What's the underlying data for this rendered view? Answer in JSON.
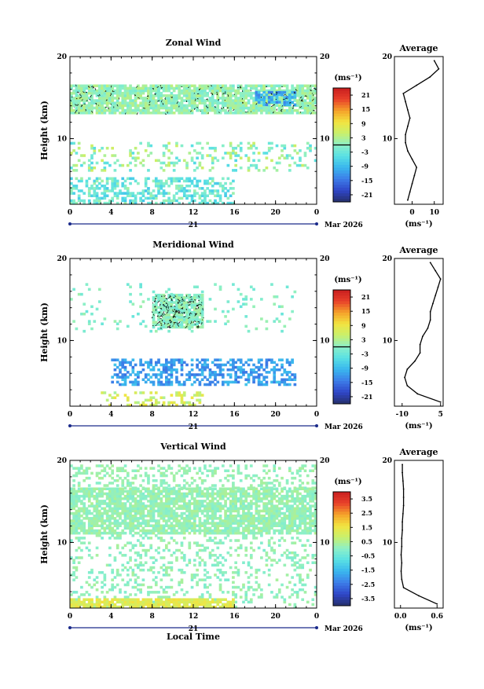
{
  "common": {
    "ylabel": "Height (km)",
    "unit_label": "(ms⁻¹)",
    "avg_title": "Average",
    "avg_xlabel": "(ms⁻¹)",
    "day_label": "21",
    "month_label": "Mar 2026",
    "xlabel": "Local Time"
  },
  "chart_data": [
    {
      "type": "heatmap",
      "title": "Zonal Wind",
      "ylabel": "Height (km)",
      "x_ticks": [
        "0",
        "4",
        "8",
        "12",
        "16",
        "20",
        "0"
      ],
      "y_ticks": [
        "10",
        "20"
      ],
      "xlim": [
        0,
        24
      ],
      "ylim": [
        2,
        20
      ],
      "colorbar": {
        "label": "(ms⁻¹)",
        "ticks": [
          "21",
          "15",
          "9",
          "3",
          "-3",
          "-9",
          "-15",
          "-21"
        ],
        "range": [
          -24,
          24
        ]
      },
      "profile": {
        "title": "Average",
        "xlabel": "(ms⁻¹)",
        "x_ticks": [
          "0",
          "10"
        ],
        "y_ticks": [
          "10",
          "20"
        ],
        "xlim": [
          -8,
          14
        ],
        "heights": [
          2.5,
          3.5,
          4.5,
          5.5,
          6.5,
          7.5,
          8.5,
          9.5,
          10.5,
          11.5,
          12.5,
          13.5,
          14.5,
          15.5,
          16.5,
          17.5,
          18.5,
          19.5
        ],
        "values": [
          -2,
          -1,
          0,
          1,
          2,
          0,
          -2,
          -3,
          -3,
          -2,
          -1,
          -2,
          -3,
          -4,
          2,
          8,
          12,
          10
        ]
      }
    },
    {
      "type": "heatmap",
      "title": "Meridional Wind",
      "ylabel": "Height (km)",
      "x_ticks": [
        "0",
        "4",
        "8",
        "12",
        "16",
        "20",
        "0"
      ],
      "y_ticks": [
        "10",
        "20"
      ],
      "xlim": [
        0,
        24
      ],
      "ylim": [
        2,
        20
      ],
      "colorbar": {
        "label": "(ms⁻¹)",
        "ticks": [
          "21",
          "15",
          "9",
          "3",
          "-3",
          "-9",
          "-15",
          "-21"
        ],
        "range": [
          -24,
          24
        ]
      },
      "profile": {
        "title": "Average",
        "xlabel": "(ms⁻¹)",
        "x_ticks": [
          "-10",
          "5"
        ],
        "y_ticks": [
          "10",
          "20"
        ],
        "xlim": [
          -13,
          6
        ],
        "heights": [
          2.5,
          3.5,
          4.5,
          5.5,
          6.5,
          7.5,
          8.5,
          9.5,
          10.5,
          11.5,
          12.5,
          13.5,
          14.5,
          15.5,
          16.5,
          17.5,
          18.5,
          19.5
        ],
        "values": [
          5,
          -4,
          -8,
          -9,
          -8,
          -5,
          -3,
          -3,
          -2,
          0,
          1,
          1,
          2,
          3,
          4,
          5,
          3,
          1
        ]
      }
    },
    {
      "type": "heatmap",
      "title": "Vertical Wind",
      "ylabel": "Height (km)",
      "xlabel": "Local Time",
      "x_ticks": [
        "0",
        "4",
        "8",
        "12",
        "16",
        "20",
        "0"
      ],
      "y_ticks": [
        "10",
        "20"
      ],
      "xlim": [
        0,
        24
      ],
      "ylim": [
        2,
        20
      ],
      "colorbar": {
        "label": "(ms⁻¹)",
        "ticks": [
          "3.5",
          "2.5",
          "1.5",
          "0.5",
          "-0.5",
          "-1.5",
          "-2.5",
          "-3.5"
        ],
        "range": [
          -4,
          4
        ]
      },
      "profile": {
        "title": "Average",
        "xlabel": "(ms⁻¹)",
        "x_ticks": [
          "0.0",
          "0.6"
        ],
        "y_ticks": [
          "10",
          "20"
        ],
        "xlim": [
          -0.1,
          0.7
        ],
        "heights": [
          2.5,
          3.5,
          4.5,
          5.5,
          6.5,
          7.5,
          8.5,
          9.5,
          10.5,
          11.5,
          12.5,
          13.5,
          14.5,
          15.5,
          16.5,
          17.5,
          18.5,
          19.5
        ],
        "values": [
          0.6,
          0.3,
          0.05,
          0.02,
          0.01,
          0.02,
          0.01,
          0.02,
          0.02,
          0.03,
          0.03,
          0.04,
          0.05,
          0.05,
          0.05,
          0.04,
          0.03,
          0.03
        ]
      }
    }
  ]
}
